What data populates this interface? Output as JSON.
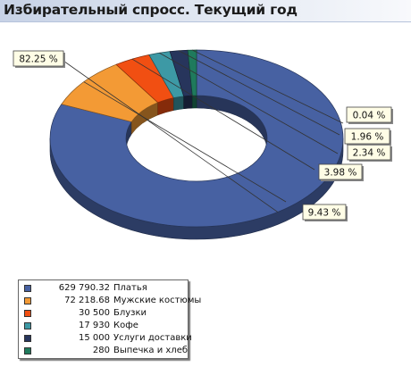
{
  "title": "Избирательный спросс. Текущий год",
  "chart_data": {
    "type": "pie",
    "variant": "doughnut-3d",
    "categories": [
      "Платья",
      "Мужские костюмы",
      "Блузки",
      "Кофе",
      "Услуги доставки",
      "Выпечка и хлеб"
    ],
    "values": [
      629790.32,
      72218.68,
      30500,
      17930,
      15000,
      280
    ],
    "value_labels": [
      "629 790.32",
      "72 218.68",
      "30 500",
      "17 930",
      "15 000",
      "280"
    ],
    "percent_labels": [
      "82.25 %",
      "9.43 %",
      "3.98 %",
      "2.34 %",
      "1.96 %",
      "0.04 %"
    ],
    "colors": [
      "#4761a2",
      "#f39a35",
      "#f14f12",
      "#3d99a5",
      "#27355c",
      "#1f7a5c"
    ],
    "legend_placement": "bottom-left"
  }
}
